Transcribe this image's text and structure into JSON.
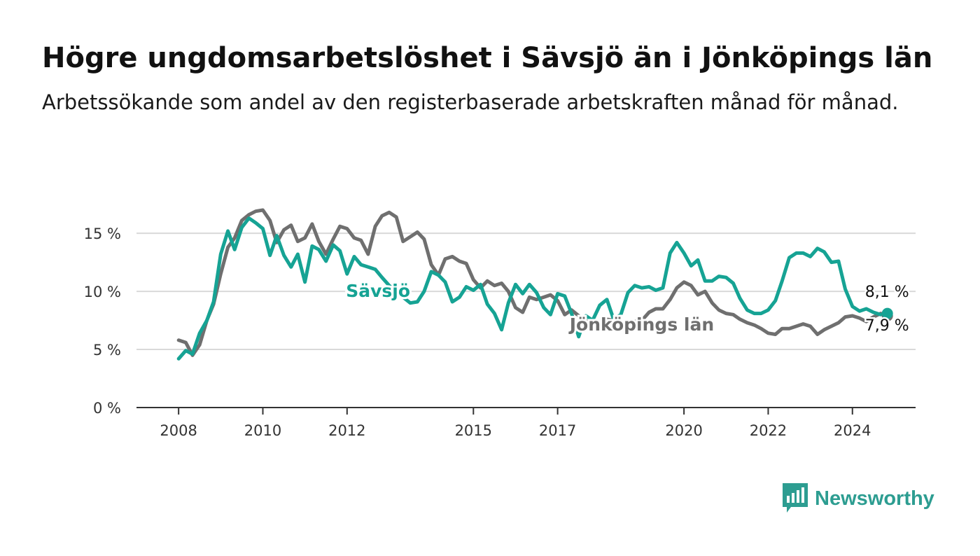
{
  "header": {
    "title": "Högre ungdomsarbetslöshet i Sävsjö än i Jönköpings län",
    "subtitle": "Arbetssökande som andel av den registerbaserade arbetskraften månad för månad."
  },
  "branding": {
    "logo_text": "Newsworthy",
    "logo_icon": "bar-chart-speech-bubble-icon"
  },
  "colors": {
    "savsjo": "#16a394",
    "lan": "#6f6f6f",
    "grid": "#d9d9d9",
    "axis": "#333333",
    "brand": "#2d9d91"
  },
  "chart_data": {
    "type": "line",
    "title": "Högre ungdomsarbetslöshet i Sävsjö än i Jönköpings län",
    "subtitle": "Arbetssökande som andel av den registerbaserade arbetskraften månad för månad.",
    "xlabel": "",
    "ylabel": "",
    "xlim": [
      2007.0,
      2025.5
    ],
    "ylim": [
      0,
      17
    ],
    "x_ticks": [
      {
        "value": 2008,
        "label": "2008"
      },
      {
        "value": 2010,
        "label": "2010"
      },
      {
        "value": 2012,
        "label": "2012"
      },
      {
        "value": 2015,
        "label": "2015"
      },
      {
        "value": 2017,
        "label": "2017"
      },
      {
        "value": 2020,
        "label": "2020"
      },
      {
        "value": 2022,
        "label": "2022"
      },
      {
        "value": 2024,
        "label": "2024"
      }
    ],
    "y_ticks": [
      {
        "value": 0,
        "label": "0 %"
      },
      {
        "value": 5,
        "label": "5 %"
      },
      {
        "value": 10,
        "label": "10 %"
      },
      {
        "value": 15,
        "label": "15 %"
      }
    ],
    "grid": true,
    "legend": "inline labels",
    "series": [
      {
        "name": "Jönköpings län",
        "color": "#6f6f6f",
        "end_label": "7,9 %",
        "x": [
          2008.0,
          2008.17,
          2008.33,
          2008.5,
          2008.67,
          2008.83,
          2009.0,
          2009.17,
          2009.33,
          2009.5,
          2009.67,
          2009.83,
          2010.0,
          2010.17,
          2010.33,
          2010.5,
          2010.67,
          2010.83,
          2011.0,
          2011.17,
          2011.33,
          2011.5,
          2011.67,
          2011.83,
          2012.0,
          2012.17,
          2012.33,
          2012.5,
          2012.67,
          2012.83,
          2013.0,
          2013.17,
          2013.33,
          2013.5,
          2013.67,
          2013.83,
          2014.0,
          2014.17,
          2014.33,
          2014.5,
          2014.67,
          2014.83,
          2015.0,
          2015.17,
          2015.33,
          2015.5,
          2015.67,
          2015.83,
          2016.0,
          2016.17,
          2016.33,
          2016.5,
          2016.67,
          2016.83,
          2017.0,
          2017.17,
          2017.33,
          2017.5,
          2017.67,
          2017.83,
          2018.0,
          2018.17,
          2018.33,
          2018.5,
          2018.67,
          2018.83,
          2019.0,
          2019.17,
          2019.33,
          2019.5,
          2019.67,
          2019.83,
          2020.0,
          2020.17,
          2020.33,
          2020.5,
          2020.67,
          2020.83,
          2021.0,
          2021.17,
          2021.33,
          2021.5,
          2021.67,
          2021.83,
          2022.0,
          2022.17,
          2022.33,
          2022.5,
          2022.67,
          2022.83,
          2023.0,
          2023.17,
          2023.33,
          2023.5,
          2023.67,
          2023.83,
          2024.0,
          2024.17,
          2024.33,
          2024.5,
          2024.67,
          2024.83
        ],
        "values": [
          5.8,
          5.6,
          4.5,
          5.4,
          7.5,
          8.9,
          11.5,
          13.8,
          14.6,
          16.1,
          16.6,
          16.9,
          17.0,
          16.1,
          14.2,
          15.3,
          15.7,
          14.3,
          14.6,
          15.8,
          14.3,
          13.2,
          14.5,
          15.6,
          15.4,
          14.6,
          14.4,
          13.2,
          15.6,
          16.5,
          16.8,
          16.4,
          14.3,
          14.7,
          15.1,
          14.5,
          12.3,
          11.4,
          12.8,
          13.0,
          12.6,
          12.4,
          11.0,
          10.3,
          10.9,
          10.5,
          10.7,
          10.0,
          8.6,
          8.2,
          9.5,
          9.3,
          9.5,
          9.7,
          9.2,
          8.0,
          8.4,
          7.9,
          7.5,
          7.0,
          7.2,
          7.6,
          7.5,
          7.2,
          7.3,
          7.4,
          7.5,
          8.2,
          8.5,
          8.5,
          9.3,
          10.3,
          10.8,
          10.5,
          9.7,
          10.0,
          9.0,
          8.4,
          8.1,
          8.0,
          7.6,
          7.3,
          7.1,
          6.8,
          6.4,
          6.3,
          6.8,
          6.8,
          7.0,
          7.2,
          7.0,
          6.3,
          6.7,
          7.0,
          7.3,
          7.8,
          7.9,
          7.7,
          7.4,
          7.8,
          8.1,
          7.9
        ]
      },
      {
        "name": "Sävsjö",
        "color": "#16a394",
        "end_label": "8,1 %",
        "x": [
          2008.0,
          2008.17,
          2008.33,
          2008.5,
          2008.67,
          2008.83,
          2009.0,
          2009.17,
          2009.33,
          2009.5,
          2009.67,
          2009.83,
          2010.0,
          2010.17,
          2010.33,
          2010.5,
          2010.67,
          2010.83,
          2011.0,
          2011.17,
          2011.33,
          2011.5,
          2011.67,
          2011.83,
          2012.0,
          2012.17,
          2012.33,
          2012.5,
          2012.67,
          2012.83,
          2013.0,
          2013.17,
          2013.33,
          2013.5,
          2013.67,
          2013.83,
          2014.0,
          2014.17,
          2014.33,
          2014.5,
          2014.67,
          2014.83,
          2015.0,
          2015.17,
          2015.33,
          2015.5,
          2015.67,
          2015.83,
          2016.0,
          2016.17,
          2016.33,
          2016.5,
          2016.67,
          2016.83,
          2017.0,
          2017.17,
          2017.33,
          2017.5,
          2017.67,
          2017.83,
          2018.0,
          2018.17,
          2018.33,
          2018.5,
          2018.67,
          2018.83,
          2019.0,
          2019.17,
          2019.33,
          2019.5,
          2019.67,
          2019.83,
          2020.0,
          2020.17,
          2020.33,
          2020.5,
          2020.67,
          2020.83,
          2021.0,
          2021.17,
          2021.33,
          2021.5,
          2021.67,
          2021.83,
          2022.0,
          2022.17,
          2022.33,
          2022.5,
          2022.67,
          2022.83,
          2023.0,
          2023.17,
          2023.33,
          2023.5,
          2023.67,
          2023.83,
          2024.0,
          2024.17,
          2024.33,
          2024.5,
          2024.67,
          2024.83
        ],
        "values": [
          4.2,
          4.9,
          4.6,
          6.4,
          7.5,
          9.1,
          13.2,
          15.2,
          13.6,
          15.5,
          16.3,
          15.9,
          15.4,
          13.1,
          14.8,
          13.1,
          12.1,
          13.2,
          10.8,
          13.9,
          13.6,
          12.6,
          14.0,
          13.5,
          11.5,
          13.0,
          12.3,
          12.1,
          11.9,
          11.2,
          10.5,
          10.0,
          9.5,
          9.0,
          9.1,
          10.0,
          11.7,
          11.4,
          10.8,
          9.1,
          9.5,
          10.4,
          10.1,
          10.6,
          8.9,
          8.1,
          6.7,
          9.0,
          10.6,
          9.8,
          10.6,
          9.9,
          8.6,
          8.0,
          9.8,
          9.6,
          8.1,
          6.1,
          7.9,
          7.5,
          8.8,
          9.3,
          7.6,
          8.0,
          9.9,
          10.5,
          10.3,
          10.4,
          10.1,
          10.3,
          13.3,
          14.2,
          13.3,
          12.2,
          12.7,
          10.9,
          10.9,
          11.3,
          11.2,
          10.7,
          9.4,
          8.4,
          8.1,
          8.1,
          8.4,
          9.2,
          10.9,
          12.9,
          13.3,
          13.3,
          13.0,
          13.7,
          13.4,
          12.5,
          12.6,
          10.2,
          8.7,
          8.3,
          8.5,
          8.2,
          8.0,
          8.1
        ]
      }
    ],
    "annotations": [
      {
        "text": "Sävsjö",
        "series": "Sävsjö",
        "x": 2013.5,
        "y": 10.0
      },
      {
        "text": "Jönköpings län",
        "series": "Jönköpings län",
        "x": 2019.0,
        "y": 7.1
      }
    ]
  }
}
